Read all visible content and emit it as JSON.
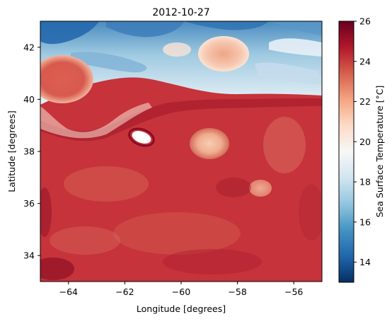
{
  "chart_data": {
    "type": "heatmap",
    "title": "2012-10-27",
    "xlabel": "Longitude [degrees]",
    "ylabel": "Latitude [degrees]",
    "xlim": [
      -65,
      -55
    ],
    "ylim": [
      33,
      43
    ],
    "x_ticks": [
      -64,
      -62,
      -60,
      -58,
      -56
    ],
    "y_ticks": [
      34,
      36,
      38,
      40,
      42
    ],
    "x_tick_labels": [
      "−64",
      "−62",
      "−60",
      "−58",
      "−56"
    ],
    "y_tick_labels": [
      "34",
      "36",
      "38",
      "40",
      "42"
    ],
    "colorbar": {
      "label": "Sea Surface Temperature [°C]",
      "colormap": "RdBu_r",
      "vmin": 13,
      "vmax": 26,
      "ticks": [
        14,
        16,
        18,
        20,
        22,
        24,
        26
      ],
      "tick_labels": [
        "14",
        "16",
        "18",
        "20",
        "22",
        "24",
        "26"
      ]
    },
    "grid": false,
    "legend": "none",
    "features": [
      {
        "description": "cold water region north of front",
        "lon_range": [
          -65,
          -55
        ],
        "lat_range": [
          39.6,
          43
        ],
        "approx_temp": 17
      },
      {
        "description": "Gulf Stream warm band south of front",
        "lon_range": [
          -65,
          -55
        ],
        "lat_range": [
          33,
          39.6
        ],
        "approx_temp": 24
      },
      {
        "description": "warm-core ring",
        "center": [
          -64.2,
          40.6
        ],
        "approx_temp": 24
      },
      {
        "description": "cold-core eddy",
        "center": [
          -61.3,
          38.5
        ],
        "approx_temp": 19
      },
      {
        "description": "warm anomaly",
        "center": [
          -58.8,
          38.3
        ],
        "approx_temp": 22
      },
      {
        "description": "warm eddy north of front",
        "center": [
          -58.6,
          41.8
        ],
        "approx_temp": 21
      }
    ]
  }
}
